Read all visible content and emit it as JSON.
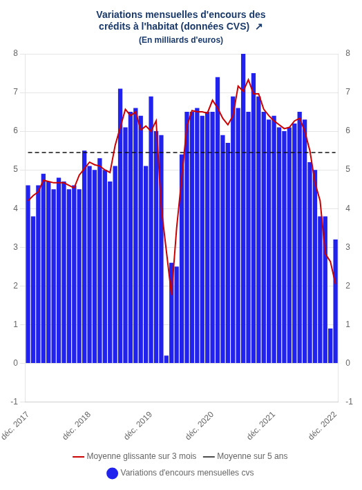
{
  "chart_data": {
    "type": "bar",
    "title": [
      "Variations mensuelles d'encours des",
      "crédits à l'habitat (données CVS)  ↗"
    ],
    "subtitle": "(En milliards d'euros)",
    "categories": [
      "déc. 2017",
      null,
      null,
      null,
      null,
      null,
      null,
      null,
      null,
      null,
      null,
      null,
      "déc. 2018",
      null,
      null,
      null,
      null,
      null,
      null,
      null,
      null,
      null,
      null,
      null,
      "déc. 2019",
      null,
      null,
      null,
      null,
      null,
      null,
      null,
      null,
      null,
      null,
      null,
      "déc. 2020",
      null,
      null,
      null,
      null,
      null,
      null,
      null,
      null,
      null,
      null,
      null,
      "déc. 2021",
      null,
      null,
      null,
      null,
      null,
      null,
      null,
      null,
      null,
      null,
      null,
      "déc. 2022"
    ],
    "series": [
      {
        "name": "Variations d'encours mensuelles cvs",
        "type": "bar",
        "color": "#2222ee",
        "marker": "circle",
        "values": [
          4.6,
          3.8,
          4.6,
          4.9,
          4.7,
          4.5,
          4.8,
          4.7,
          4.5,
          4.6,
          4.5,
          5.5,
          5.1,
          5.0,
          5.3,
          5.0,
          4.7,
          5.1,
          7.1,
          6.1,
          6.5,
          6.6,
          6.4,
          5.1,
          6.9,
          6.0,
          5.9,
          0.2,
          2.6,
          2.5,
          5.4,
          6.5,
          6.5,
          6.6,
          6.4,
          6.5,
          6.5,
          7.4,
          5.9,
          5.7,
          6.9,
          6.6,
          8.0,
          6.5,
          7.5,
          6.9,
          6.5,
          6.3,
          6.4,
          6.1,
          6.0,
          6.1,
          6.2,
          6.5,
          6.3,
          5.2,
          5.0,
          3.8,
          3.8,
          0.9,
          3.2
        ]
      },
      {
        "name": "Moyenne glissante sur 3 mois",
        "type": "line",
        "color": "#cc0000",
        "line_style": "solid",
        "values": [
          4.2,
          4.333333,
          4.433333,
          4.733333,
          4.7,
          4.666667,
          4.666667,
          4.666667,
          4.6,
          4.533333,
          4.866667,
          5.033333,
          5.2,
          5.133333,
          5.1,
          5.0,
          4.933333,
          5.633333,
          6.1,
          6.566667,
          6.4,
          6.5,
          6.033333,
          6.133333,
          6.0,
          6.266667,
          4.033333,
          2.9,
          1.766667,
          3.5,
          4.8,
          6.133333,
          6.533333,
          6.5,
          6.5,
          6.466667,
          6.8,
          6.6,
          6.333333,
          6.166667,
          6.4,
          7.166667,
          7.033333,
          7.333333,
          6.966667,
          6.966667,
          6.566667,
          6.4,
          6.266667,
          6.166667,
          6.066667,
          6.1,
          6.266667,
          6.333333,
          6.0,
          5.5,
          4.666667,
          4.2,
          2.833333,
          2.633333,
          2.05
        ]
      },
      {
        "name": "Moyenne sur 5 ans",
        "type": "line",
        "color": "#111111",
        "line_style": "dashed",
        "values": [
          5.45,
          5.45,
          5.45,
          5.45,
          5.45,
          5.45,
          5.45,
          5.45,
          5.45,
          5.45,
          5.45,
          5.45,
          5.45,
          5.45,
          5.45,
          5.45,
          5.45,
          5.45,
          5.45,
          5.45,
          5.45,
          5.45,
          5.45,
          5.45,
          5.45,
          5.45,
          5.45,
          5.45,
          5.45,
          5.45,
          5.45,
          5.45,
          5.45,
          5.45,
          5.45,
          5.45,
          5.45,
          5.45,
          5.45,
          5.45,
          5.45,
          5.45,
          5.45,
          5.45,
          5.45,
          5.45,
          5.45,
          5.45,
          5.45,
          5.45,
          5.45,
          5.45,
          5.45,
          5.45,
          5.45,
          5.45,
          5.45,
          5.45,
          5.45,
          5.45,
          5.45
        ]
      }
    ],
    "ylim": [
      -1,
      8
    ],
    "yticks": [
      -1,
      0,
      1,
      2,
      3,
      4,
      5,
      6,
      7,
      8
    ],
    "y2lim": [
      -1,
      8
    ],
    "y2ticks": [
      -1,
      0,
      1,
      2,
      3,
      4,
      5,
      6,
      7,
      8
    ],
    "grid": true,
    "legend": "bottom"
  }
}
